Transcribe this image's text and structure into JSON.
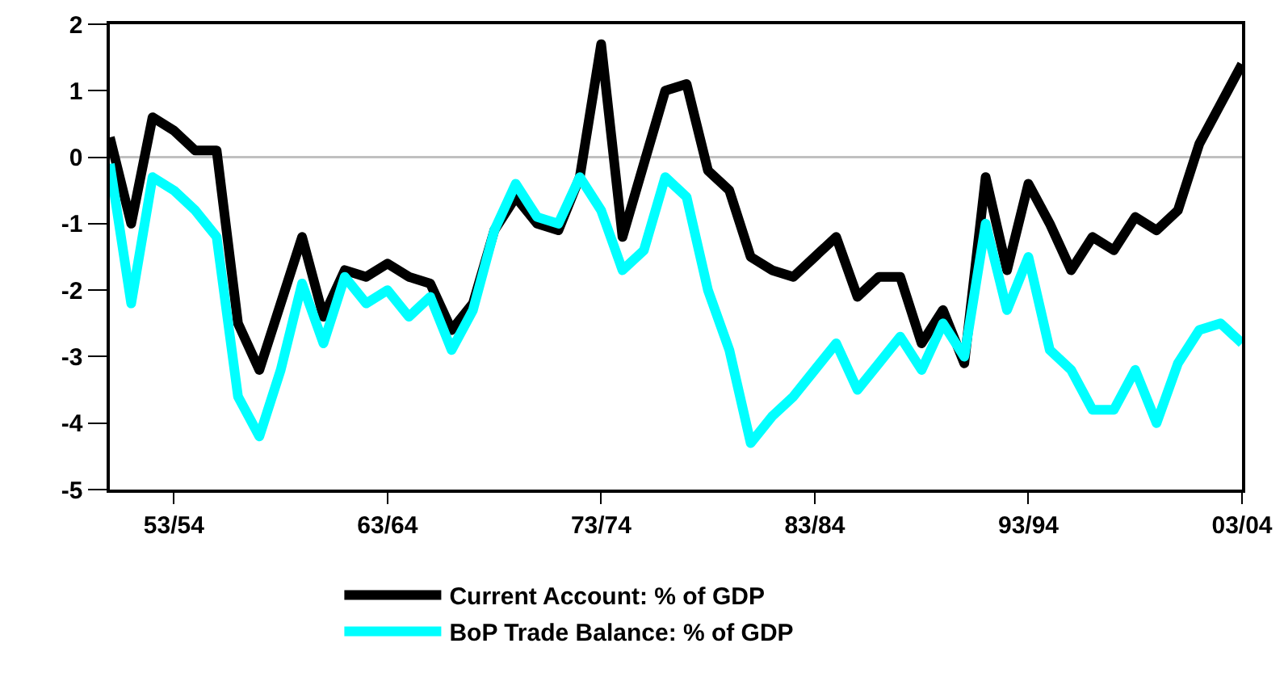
{
  "chart_data": {
    "type": "line",
    "categories": [
      null,
      null,
      null,
      "53/54",
      null,
      null,
      null,
      null,
      null,
      null,
      null,
      null,
      null,
      "63/64",
      null,
      null,
      null,
      null,
      null,
      null,
      null,
      null,
      null,
      "73/74",
      null,
      null,
      null,
      null,
      null,
      null,
      null,
      null,
      null,
      "83/84",
      null,
      null,
      null,
      null,
      null,
      null,
      null,
      null,
      null,
      "93/94",
      null,
      null,
      null,
      null,
      null,
      null,
      null,
      null,
      null,
      "03/04"
    ],
    "series": [
      {
        "name": "Current Account: % of GDP",
        "color": "#000000",
        "values": [
          0.3,
          -1.0,
          0.6,
          0.4,
          0.1,
          0.1,
          -2.5,
          -3.2,
          -2.2,
          -1.2,
          -2.4,
          -1.7,
          -1.8,
          -1.6,
          -1.8,
          -1.9,
          -2.6,
          -2.2,
          -1.1,
          -0.6,
          -1.0,
          -1.1,
          -0.3,
          1.7,
          -1.2,
          -0.1,
          1.0,
          1.1,
          -0.2,
          -0.5,
          -1.5,
          -1.7,
          -1.8,
          -1.5,
          -1.2,
          -2.1,
          -1.8,
          -1.8,
          -2.8,
          -2.3,
          -3.1,
          -0.3,
          -1.7,
          -0.4,
          -1.0,
          -1.7,
          -1.2,
          -1.4,
          -0.9,
          -1.1,
          -0.8,
          0.2,
          0.8,
          1.4
        ]
      },
      {
        "name": "BoP Trade Balance: % of GDP",
        "color": "#00ffff",
        "values": [
          -0.1,
          -2.2,
          -0.3,
          -0.5,
          -0.8,
          -1.2,
          -3.6,
          -4.2,
          -3.2,
          -1.9,
          -2.8,
          -1.8,
          -2.2,
          -2.0,
          -2.4,
          -2.1,
          -2.9,
          -2.3,
          -1.1,
          -0.4,
          -0.9,
          -1.0,
          -0.3,
          -0.8,
          -1.7,
          -1.4,
          -0.3,
          -0.6,
          -2.0,
          -2.9,
          -4.3,
          -3.9,
          -3.6,
          -3.2,
          -2.8,
          -3.5,
          -3.1,
          -2.7,
          -3.2,
          -2.5,
          -3.0,
          -1.0,
          -2.3,
          -1.5,
          -2.9,
          -3.2,
          -3.8,
          -3.8,
          -3.2,
          -4.0,
          -3.1,
          -2.6,
          -2.5,
          -2.8
        ]
      }
    ],
    "ylim": [
      -5,
      2
    ],
    "yticks": [
      -5,
      -4,
      -3,
      -2,
      -1,
      0,
      1,
      2
    ],
    "grid": false,
    "ref_lines": [
      {
        "axis": "y",
        "value": 0,
        "color": "#c0c0c0"
      }
    ],
    "legend": "bottom",
    "marker": "none",
    "line_style": "solid"
  }
}
